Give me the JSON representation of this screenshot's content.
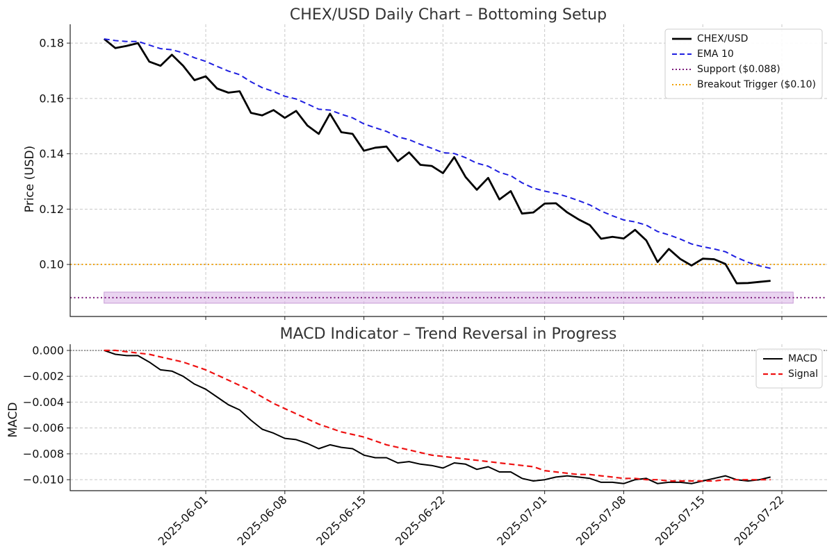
{
  "figure": {
    "colors": {
      "price": "#000000",
      "ema": "#1f1fe0",
      "support": "#7b1a7b",
      "support_band": "#d9b3e6",
      "trigger": "#f0a000",
      "macd": "#000000",
      "signal": "#ee1111",
      "zero": "#777777"
    }
  },
  "chart_data": [
    {
      "type": "line",
      "title": "CHEX/USD Daily Chart – Bottoming Setup",
      "xlabel": "",
      "ylabel": "Price (USD)",
      "x_start": "2025-05-23",
      "x_end": "2025-07-23",
      "xlim": [
        "2025-05-20",
        "2025-07-26"
      ],
      "ylim": [
        0.0812,
        0.1868
      ],
      "yticks": [
        0.1,
        0.12,
        0.14,
        0.16,
        0.18
      ],
      "ytick_labels": [
        "0.10",
        "0.12",
        "0.14",
        "0.16",
        "0.18"
      ],
      "xticks": [
        "2025-06-01",
        "2025-06-08",
        "2025-06-15",
        "2025-06-22",
        "2025-07-01",
        "2025-07-08",
        "2025-07-15",
        "2025-07-22"
      ],
      "grid": true,
      "legend_position": "top-right",
      "series": [
        {
          "name": "CHEX/USD",
          "style": "solid",
          "values": [
            0.1815,
            0.1782,
            0.179,
            0.18,
            0.1733,
            0.1718,
            0.1758,
            0.1718,
            0.1666,
            0.168,
            0.1636,
            0.1621,
            0.1626,
            0.1548,
            0.1539,
            0.1558,
            0.153,
            0.1555,
            0.1502,
            0.1472,
            0.1545,
            0.1478,
            0.1472,
            0.1411,
            0.1422,
            0.1426,
            0.1373,
            0.1405,
            0.136,
            0.1356,
            0.133,
            0.1388,
            0.1316,
            0.127,
            0.1313,
            0.1235,
            0.1265,
            0.1184,
            0.1188,
            0.122,
            0.1221,
            0.1188,
            0.1163,
            0.1142,
            0.1093,
            0.11,
            0.1094,
            0.1125,
            0.1087,
            0.1009,
            0.1056,
            0.102,
            0.0996,
            0.1021,
            0.1019,
            0.1002,
            0.0932,
            0.0933,
            0.0937,
            0.0941
          ]
        },
        {
          "name": "EMA 10",
          "style": "dashed",
          "values": [
            0.1815,
            0.1809,
            0.1806,
            0.1806,
            0.1793,
            0.178,
            0.1776,
            0.1765,
            0.1747,
            0.1734,
            0.1716,
            0.1699,
            0.1686,
            0.166,
            0.1639,
            0.1625,
            0.1608,
            0.1598,
            0.158,
            0.1561,
            0.1558,
            0.1543,
            0.153,
            0.1508,
            0.1494,
            0.1481,
            0.1461,
            0.1451,
            0.1434,
            0.142,
            0.1404,
            0.1401,
            0.1386,
            0.1366,
            0.1355,
            0.1333,
            0.1321,
            0.1295,
            0.1276,
            0.1265,
            0.1257,
            0.1245,
            0.1231,
            0.1215,
            0.1193,
            0.1176,
            0.1161,
            0.1154,
            0.1142,
            0.1119,
            0.1107,
            0.1092,
            0.1074,
            0.1064,
            0.1056,
            0.1046,
            0.1025,
            0.1008,
            0.0995,
            0.0986
          ]
        }
      ],
      "lines": [
        {
          "name": "Support ($0.088)",
          "style": "dotted",
          "value": 0.088
        },
        {
          "name": "Breakout Trigger ($0.10)",
          "style": "dotted",
          "value": 0.1
        }
      ],
      "band": {
        "from": 0.086,
        "to": 0.09
      }
    },
    {
      "type": "line",
      "title": "MACD Indicator – Trend Reversal in Progress",
      "xlabel": "",
      "ylabel": "MACD",
      "x_start": "2025-05-23",
      "x_end": "2025-07-23",
      "xlim": [
        "2025-05-20",
        "2025-07-26"
      ],
      "ylim": [
        -0.01085,
        0.00048
      ],
      "yticks": [
        0.0,
        -0.002,
        -0.004,
        -0.006,
        -0.008,
        -0.01
      ],
      "ytick_labels": [
        "0.000",
        "−0.002",
        "−0.004",
        "−0.006",
        "−0.008",
        "−0.010"
      ],
      "grid": true,
      "legend_position": "top-right",
      "series": [
        {
          "name": "MACD",
          "style": "solid",
          "values": [
            0.0,
            -0.0003,
            -0.0004,
            -0.0004,
            -0.0009,
            -0.0015,
            -0.0016,
            -0.002,
            -0.0026,
            -0.003,
            -0.0036,
            -0.0042,
            -0.0046,
            -0.0054,
            -0.0061,
            -0.0064,
            -0.0068,
            -0.0069,
            -0.0072,
            -0.0076,
            -0.0073,
            -0.0075,
            -0.0076,
            -0.0081,
            -0.0083,
            -0.0083,
            -0.0087,
            -0.0086,
            -0.0088,
            -0.0089,
            -0.0091,
            -0.0087,
            -0.0088,
            -0.0092,
            -0.009,
            -0.0094,
            -0.0094,
            -0.0099,
            -0.0101,
            -0.01,
            -0.0098,
            -0.0097,
            -0.0098,
            -0.0099,
            -0.0102,
            -0.0102,
            -0.0103,
            -0.01,
            -0.0099,
            -0.0103,
            -0.0102,
            -0.0102,
            -0.0103,
            -0.0101,
            -0.0099,
            -0.0097,
            -0.01,
            -0.0101,
            -0.01,
            -0.0098
          ]
        },
        {
          "name": "Signal",
          "style": "dashed",
          "values": [
            0.0,
            0.0,
            -0.0001,
            -0.0002,
            -0.0003,
            -0.0005,
            -0.0007,
            -0.0009,
            -0.0012,
            -0.0015,
            -0.0019,
            -0.0023,
            -0.0027,
            -0.0031,
            -0.0036,
            -0.0041,
            -0.0045,
            -0.0049,
            -0.0053,
            -0.0057,
            -0.006,
            -0.0063,
            -0.0065,
            -0.0067,
            -0.007,
            -0.0073,
            -0.0075,
            -0.0077,
            -0.0079,
            -0.0081,
            -0.0082,
            -0.0083,
            -0.0084,
            -0.0085,
            -0.0086,
            -0.0087,
            -0.0088,
            -0.0089,
            -0.009,
            -0.0093,
            -0.0094,
            -0.0095,
            -0.0096,
            -0.0096,
            -0.0097,
            -0.0098,
            -0.0099,
            -0.0099,
            -0.01,
            -0.01,
            -0.0101,
            -0.0101,
            -0.0101,
            -0.0101,
            -0.0101,
            -0.01,
            -0.01,
            -0.01,
            -0.01,
            -0.01
          ]
        }
      ],
      "lines": [
        {
          "name": "",
          "style": "dotted",
          "value": 0.0
        }
      ]
    }
  ]
}
